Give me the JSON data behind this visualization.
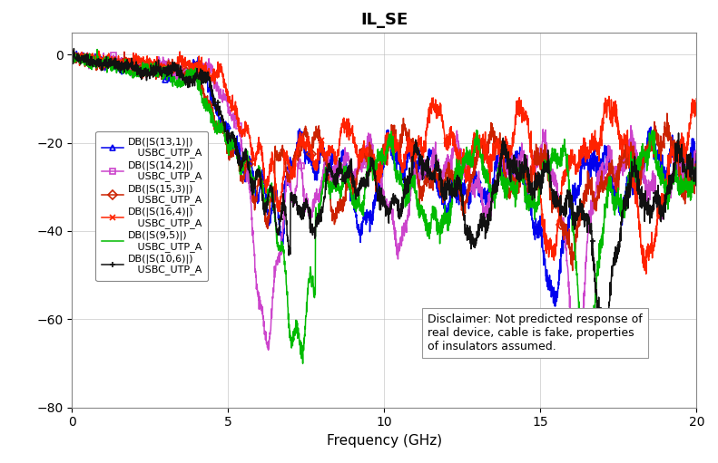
{
  "title": "IL_SE",
  "xlabel": "Frequency (GHz)",
  "ylabel": "",
  "xlim": [
    0,
    20
  ],
  "ylim": [
    -80,
    5
  ],
  "yticks": [
    0,
    -20,
    -40,
    -60,
    -80
  ],
  "xticks": [
    0,
    5,
    10,
    15,
    20
  ],
  "grid": true,
  "disclaimer": "Disclaimer: Not predicted response of\nreal device, cable is fake, properties\nof insulators assumed.",
  "series": [
    {
      "label": "DB(|S(13,1)|)\n   USBC_UTP_A",
      "color": "#0000EE",
      "marker": "^"
    },
    {
      "label": "DB(|S(14,2)|)\n   USBC_UTP_A",
      "color": "#CC44CC",
      "marker": "s"
    },
    {
      "label": "DB(|S(15,3)|)\n   USBC_UTP_A",
      "color": "#CC2200",
      "marker": "D"
    },
    {
      "label": "DB(|S(16,4)|)\n   USBC_UTP_A",
      "color": "#FF2200",
      "marker": "x"
    },
    {
      "label": "DB(|S(9,5)|)\n   USBC_UTP_A",
      "color": "#00BB00",
      "marker": "None"
    },
    {
      "label": "DB(|S(10,6)|)\n   USBC_UTP_A",
      "color": "#111111",
      "marker": "+"
    }
  ],
  "background_color": "#FFFFFF",
  "title_fontsize": 13,
  "legend_fontsize": 8,
  "axis_fontsize": 11
}
